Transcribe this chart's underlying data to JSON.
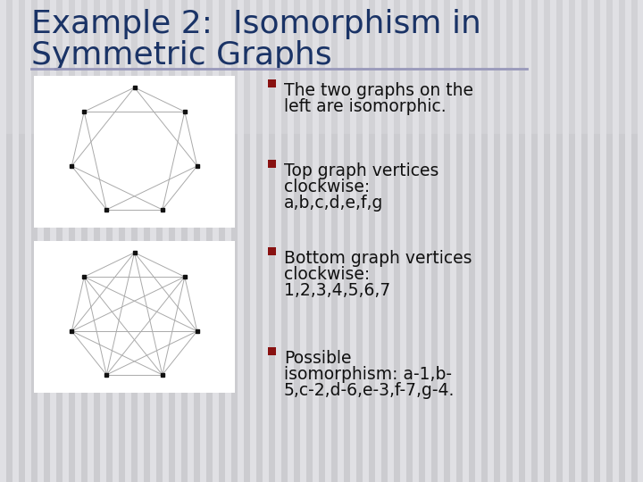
{
  "title_line1": "Example 2:  Isomorphism in",
  "title_line2": "Symmetric Graphs",
  "title_color": "#1a3366",
  "bg_color": "#d8d8dc",
  "stripe_light": "#e0e0e4",
  "stripe_dark": "#ccccd0",
  "divider_color": "#9999bb",
  "panel_color": "#ffffff",
  "bullet_color": "#881111",
  "text_color": "#111111",
  "graph_edge_color": "#aaaaaa",
  "graph_dot_color": "#111111",
  "bullets": [
    [
      "The two graphs on the",
      "left are isomorphic."
    ],
    [
      "Top graph vertices",
      "clockwise:",
      "a,b,c,d,e,f,g"
    ],
    [
      "Bottom graph vertices",
      "clockwise:",
      "1,2,3,4,5,6,7"
    ],
    [
      "Possible",
      "isomorphism: a-1,b-",
      "5,c-2,d-6,e-3,f-7,g-4."
    ]
  ]
}
